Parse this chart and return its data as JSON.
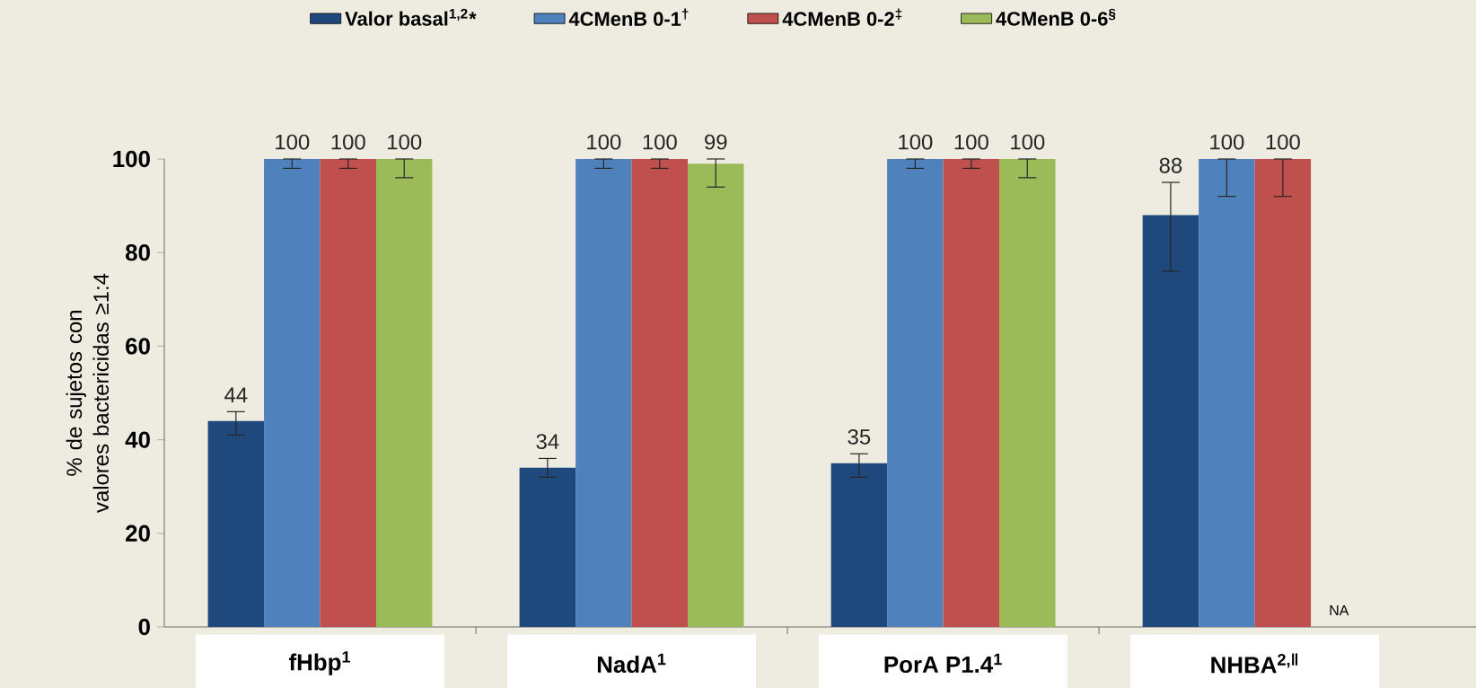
{
  "chart_data": {
    "type": "bar",
    "ylabel": "% de sujetos con valores bactericidas ≥1:4",
    "categories": [
      "fHbp$^{1}$",
      "NadA$^{1}$",
      "PorA P1.4$^{1}$",
      "NHBA$^{2,‖}$"
    ],
    "series": [
      {
        "name": "Valor basal$^{1,2}$*",
        "color": "#1F497D",
        "values": [
          44,
          34,
          35,
          88
        ],
        "errors": [
          [
            41,
            46
          ],
          [
            32,
            36
          ],
          [
            32,
            37
          ],
          [
            76,
            95
          ]
        ]
      },
      {
        "name": "4CMenB 0-1$^{†}$",
        "color": "#4F81BD",
        "values": [
          100,
          100,
          100,
          100
        ],
        "errors": [
          [
            98,
            100
          ],
          [
            98,
            100
          ],
          [
            98,
            100
          ],
          [
            92,
            100
          ]
        ]
      },
      {
        "name": "4CMenB 0-2$^{‡}$",
        "color": "#C0504D",
        "values": [
          100,
          100,
          100,
          100
        ],
        "errors": [
          [
            98,
            100
          ],
          [
            98,
            100
          ],
          [
            98,
            100
          ],
          [
            92,
            100
          ]
        ]
      },
      {
        "name": "4CMenB 0-6$^{§}$",
        "color": "#9BBB59",
        "values": [
          100,
          99,
          100,
          null
        ],
        "errors": [
          [
            96,
            100
          ],
          [
            94,
            100
          ],
          [
            96,
            100
          ],
          null
        ]
      }
    ],
    "ylim": [
      0,
      100
    ],
    "yticks": [
      0,
      20,
      40,
      60,
      80,
      100
    ],
    "data_labels": true,
    "legend": "top",
    "annotations": [
      "NA"
    ]
  }
}
